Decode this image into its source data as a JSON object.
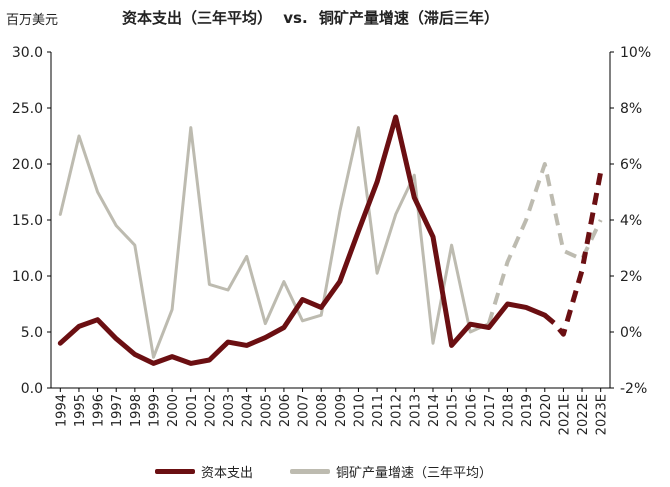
{
  "header": {
    "unit_label": "百万美元",
    "title_left": "资本支出（三年平均）",
    "title_vs": "vs.",
    "title_right": "铜矿产量增速（滞后三年）"
  },
  "chart_data": {
    "type": "line",
    "categories": [
      "1994",
      "1995",
      "1996",
      "1997",
      "1998",
      "1999",
      "2000",
      "2001",
      "2002",
      "2003",
      "2004",
      "2005",
      "2006",
      "2007",
      "2008",
      "2009",
      "2010",
      "2011",
      "2012",
      "2013",
      "2014",
      "2015",
      "2016",
      "2017",
      "2018",
      "2019",
      "2020",
      "2021E",
      "2022E",
      "2023E"
    ],
    "y_left": {
      "label": "百万美元",
      "ylim": [
        0,
        30
      ],
      "ticks": [
        "0.0",
        "5.0",
        "10.0",
        "15.0",
        "20.0",
        "25.0",
        "30.0"
      ]
    },
    "y_right": {
      "label": "",
      "ylim": [
        -2,
        10
      ],
      "ticks": [
        "-2%",
        "0%",
        "2%",
        "4%",
        "6%",
        "8%",
        "10%"
      ]
    },
    "series": [
      {
        "name": "资本支出",
        "axis": "left",
        "color": "#6b0f12",
        "values": [
          4.0,
          5.5,
          6.1,
          4.4,
          3.0,
          2.2,
          2.8,
          2.2,
          2.5,
          4.1,
          3.8,
          4.5,
          5.4,
          7.9,
          7.2,
          9.5,
          14.0,
          18.4,
          24.2,
          17.0,
          13.5,
          3.8,
          5.7,
          5.4,
          7.5,
          7.2,
          6.5,
          null,
          null,
          null
        ],
        "projection": {
          "from_index": 26,
          "values": [
            6.5,
            5.8,
            4.8,
            10.5,
            19.3
          ],
          "x_offsets": [
            0,
            0.5,
            1,
            2,
            3
          ]
        }
      },
      {
        "name": "铜矿产量增速（三年平均）",
        "axis": "right",
        "color": "#bdbbb0",
        "values": [
          4.2,
          7.0,
          5.0,
          3.8,
          3.1,
          -0.9,
          0.8,
          7.3,
          1.7,
          1.5,
          2.7,
          0.3,
          1.8,
          0.4,
          0.6,
          4.3,
          7.3,
          2.1,
          4.2,
          5.6,
          -0.4,
          3.1,
          0.0,
          0.3,
          null,
          null,
          null,
          null,
          null,
          null
        ],
        "projection": {
          "from_index": 23,
          "values": [
            0.3,
            2.5,
            4.0,
            6.0,
            2.9,
            2.6,
            4.0
          ],
          "x_offsets": [
            0,
            1,
            2,
            3,
            4,
            5,
            6
          ]
        }
      }
    ]
  },
  "legend": {
    "capex_label": "资本支出",
    "copper_label": "铜矿产量增速（三年平均）"
  },
  "colors": {
    "capex": "#6b0f12",
    "copper": "#bdbbb0",
    "axis": "#000000"
  }
}
